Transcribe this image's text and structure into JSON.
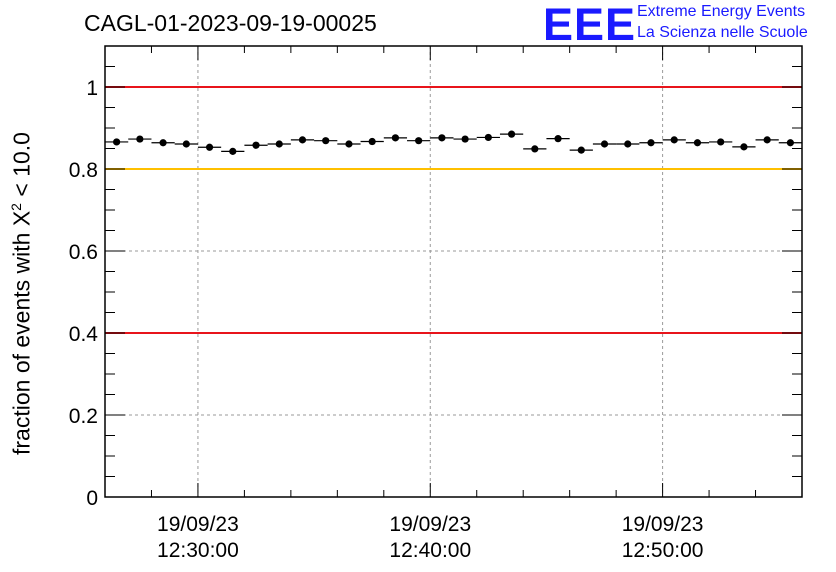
{
  "header": {
    "title": "CAGL-01-2023-09-19-00025",
    "logo_mark": "EEE",
    "logo_line1": "Extreme Energy Events",
    "logo_line2": "La Scienza nelle Scuole"
  },
  "chart_data": {
    "type": "scatter",
    "title": "CAGL-01-2023-09-19-00025",
    "ylabel": "fraction of events with X² < 10.0",
    "ylabel_parts": {
      "text": "fraction of events with X",
      "sup": "2",
      "tail": " < 10.0"
    },
    "xlabel": "",
    "ylim": [
      0,
      1.1
    ],
    "xlim": [
      "19/09/23 12:26:00",
      "19/09/23 12:56:00"
    ],
    "yticks": [
      "0",
      "0.2",
      "0.4",
      "0.6",
      "0.8",
      "1"
    ],
    "ytick_values": [
      0,
      0.2,
      0.4,
      0.6,
      0.8,
      1.0
    ],
    "xticks": [
      {
        "date": "19/09/23",
        "time": "12:30:00"
      },
      {
        "date": "19/09/23",
        "time": "12:40:00"
      },
      {
        "date": "19/09/23",
        "time": "12:50:00"
      }
    ],
    "xtick_minutes": [
      4,
      14,
      24
    ],
    "grid": true,
    "reference_lines": [
      {
        "y": 1.0,
        "color": "#e8141b"
      },
      {
        "y": 0.8,
        "color": "#ffc000"
      },
      {
        "y": 0.4,
        "color": "#e8141b"
      }
    ],
    "bin_minutes": 1,
    "x_start_minutes": 0.5,
    "series": [
      {
        "values": [
          0.866,
          0.873,
          0.864,
          0.861,
          0.853,
          0.843,
          0.858,
          0.861,
          0.871,
          0.869,
          0.861,
          0.867,
          0.876,
          0.869,
          0.876,
          0.873,
          0.877,
          0.885,
          0.849,
          0.874,
          0.846,
          0.861,
          0.861,
          0.864,
          0.871,
          0.864,
          0.866,
          0.854,
          0.871,
          0.864
        ]
      }
    ],
    "colors": {
      "marker": "#000000",
      "grid": "#9a9a9a"
    }
  }
}
